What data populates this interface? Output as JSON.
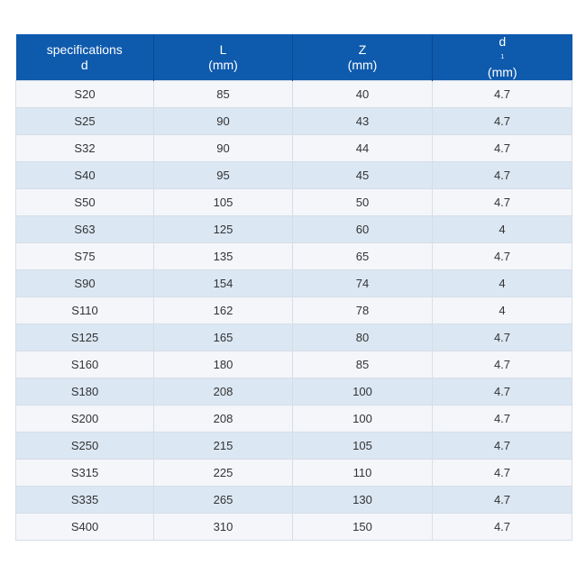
{
  "header": {
    "col1": {
      "line1": "specifications",
      "line2": "d"
    },
    "col2": {
      "line1": "L",
      "line2": "(mm)"
    },
    "col3": {
      "line1": "Z",
      "line2": "(mm)"
    },
    "col4": {
      "line1": "d",
      "line1_sub": "1",
      "line2": "(mm)"
    }
  },
  "rows": [
    [
      "S20",
      "85",
      "40",
      "4.7"
    ],
    [
      "S25",
      "90",
      "43",
      "4.7"
    ],
    [
      "S32",
      "90",
      "44",
      "4.7"
    ],
    [
      "S40",
      "95",
      "45",
      "4.7"
    ],
    [
      "S50",
      "105",
      "50",
      "4.7"
    ],
    [
      "S63",
      "125",
      "60",
      "4"
    ],
    [
      "S75",
      "135",
      "65",
      "4.7"
    ],
    [
      "S90",
      "154",
      "74",
      "4"
    ],
    [
      "S110",
      "162",
      "78",
      "4"
    ],
    [
      "S125",
      "165",
      "80",
      "4.7"
    ],
    [
      "S160",
      "180",
      "85",
      "4.7"
    ],
    [
      "S180",
      "208",
      "100",
      "4.7"
    ],
    [
      "S200",
      "208",
      "100",
      "4.7"
    ],
    [
      "S250",
      "215",
      "105",
      "4.7"
    ],
    [
      "S315",
      "225",
      "110",
      "4.7"
    ],
    [
      "S335",
      "265",
      "130",
      "4.7"
    ],
    [
      "S400",
      "310",
      "150",
      "4.7"
    ]
  ]
}
